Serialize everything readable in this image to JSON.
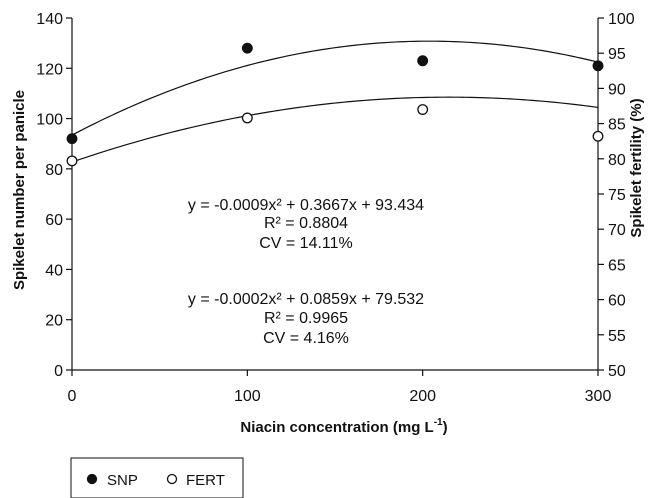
{
  "chart_data": {
    "type": "scatter",
    "x": [
      0,
      100,
      200,
      300
    ],
    "xlabel": "Niacin concentration (mg L",
    "xlabel_sup": "-1",
    "xlabel_end": ")",
    "xlim": [
      0,
      300
    ],
    "xticks": [
      "0",
      "100",
      "200",
      "300"
    ],
    "ylabel": "Spikelet number per panicle",
    "ylim": [
      0,
      140
    ],
    "yticks": [
      "0",
      "20",
      "40",
      "60",
      "80",
      "100",
      "120",
      "140"
    ],
    "y2label": "Spikelet fertility (%)",
    "y2lim": [
      50,
      100
    ],
    "y2ticks": [
      "50",
      "55",
      "60",
      "65",
      "70",
      "75",
      "80",
      "85",
      "90",
      "95",
      "100"
    ],
    "grid": false,
    "legend_position": "bottom-left",
    "series": [
      {
        "name": "SNP",
        "axis": "left",
        "marker": "filled-circle",
        "values": [
          92,
          128,
          123,
          121
        ],
        "fit": {
          "a": -0.0009,
          "b": 0.3667,
          "c": 93.434
        },
        "annotation": [
          "y = -0.0009x² + 0.3667x + 93.434",
          "R² = 0.8804",
          "CV = 14.11%"
        ]
      },
      {
        "name": "FERT",
        "axis": "right",
        "marker": "open-circle",
        "values": [
          79.7,
          85.8,
          87.0,
          83.2
        ],
        "fit": {
          "a": -0.0002,
          "b": 0.0859,
          "c": 79.532
        },
        "annotation": [
          "y = -0.0002x² + 0.0859x + 79.532",
          "R² = 0.9965",
          "CV = 4.16%"
        ]
      }
    ]
  }
}
